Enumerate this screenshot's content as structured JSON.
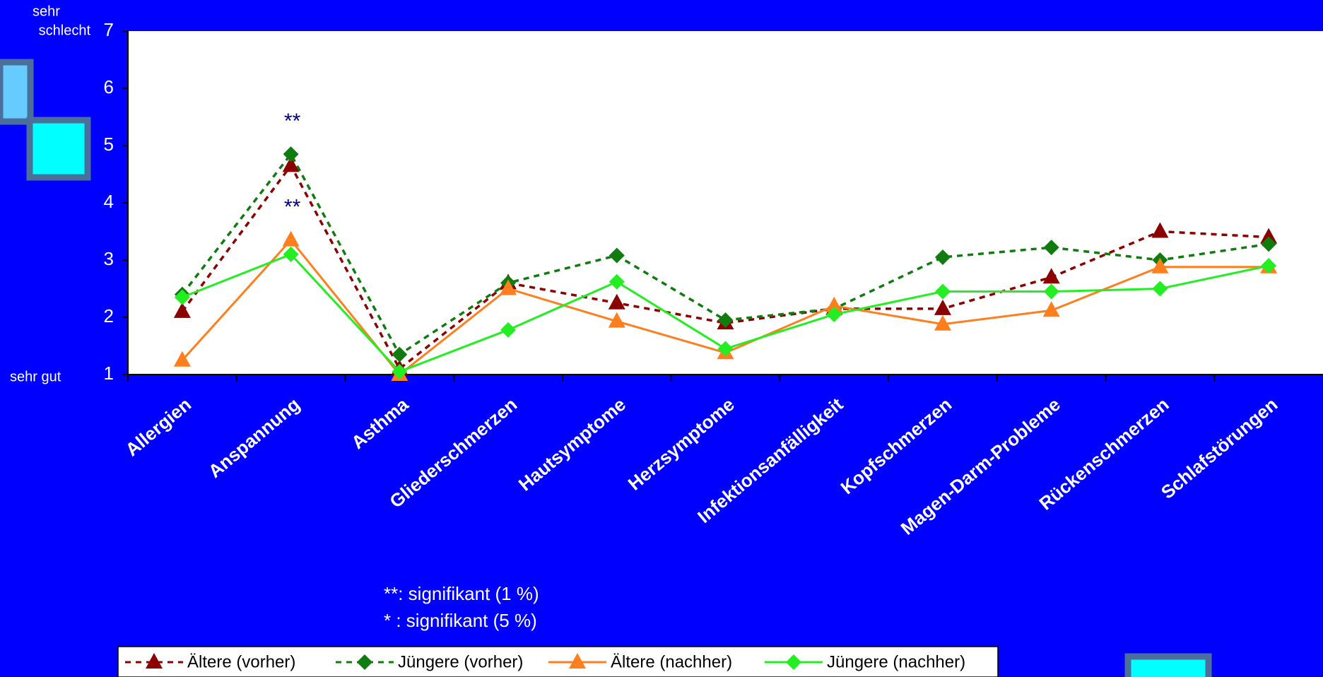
{
  "chart_data": {
    "type": "line",
    "categories": [
      "Allergien",
      "Anspannung",
      "Asthma",
      "Gliederschmerzen",
      "Hautsymptome",
      "Herzsymptome",
      "Infektionsanfälligkeit",
      "Kopfschmerzen",
      "Magen-Darm-Probleme",
      "Rückenschmerzen",
      "Schlafstörungen"
    ],
    "series": [
      {
        "name": "Ältere (vorher)",
        "color": "#8b0000",
        "dashed": true,
        "marker": "triangle",
        "values": [
          2.1,
          4.65,
          1.1,
          2.6,
          2.25,
          1.9,
          2.15,
          2.15,
          2.7,
          3.5,
          3.4
        ]
      },
      {
        "name": "Jüngere (vorher)",
        "color": "#107c10",
        "dashed": true,
        "marker": "diamond",
        "values": [
          2.4,
          4.85,
          1.35,
          2.6,
          3.08,
          1.95,
          2.15,
          3.05,
          3.22,
          3.0,
          3.28
        ]
      },
      {
        "name": "Ältere (nachher)",
        "color": "#ff7f1e",
        "dashed": false,
        "marker": "triangle",
        "values": [
          1.25,
          3.35,
          1.0,
          2.5,
          1.93,
          1.38,
          2.2,
          1.88,
          2.12,
          2.88,
          2.88
        ]
      },
      {
        "name": "Jüngere (nachher)",
        "color": "#22ee22",
        "dashed": false,
        "marker": "diamond",
        "values": [
          2.35,
          3.1,
          1.05,
          1.78,
          2.62,
          1.45,
          2.05,
          2.45,
          2.45,
          2.5,
          2.9
        ]
      }
    ],
    "ylim": [
      1,
      7
    ],
    "yticks": [
      1,
      2,
      3,
      4,
      5,
      6,
      7
    ],
    "y_top_label": [
      "sehr",
      "schlecht"
    ],
    "y_bottom_label": "sehr  gut",
    "annotations": [
      "**",
      "**"
    ],
    "footnotes": [
      "**: signifikant (1 %)",
      "*  : signifikant (5 %)"
    ],
    "legend": "bottom"
  }
}
